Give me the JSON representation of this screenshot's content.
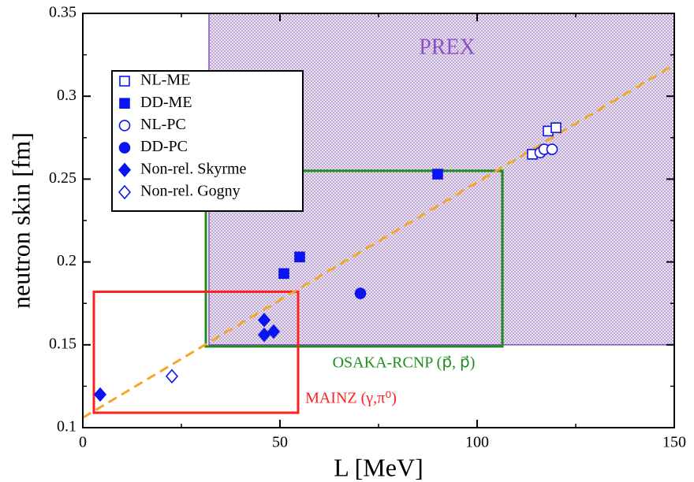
{
  "chart_data": {
    "type": "scatter",
    "xlabel": "L [MeV]",
    "ylabel": "neutron skin [fm]",
    "xlim": [
      0,
      150
    ],
    "ylim": [
      0.1,
      0.35
    ],
    "xticks": [
      0,
      50,
      100,
      150
    ],
    "yticks": [
      0.1,
      0.15,
      0.2,
      0.25,
      0.3,
      0.35
    ],
    "xminorticks": [
      25,
      75,
      125
    ],
    "yminorticks": [
      0.125,
      0.175,
      0.225,
      0.275,
      0.325
    ],
    "regions": [
      {
        "name": "PREX",
        "xlim": [
          32,
          150
        ],
        "ylim": [
          0.15,
          0.35
        ],
        "color": "#8a4fc7"
      },
      {
        "name": "OSAKA-RCNP (p⃗, p⃗)",
        "xlim": [
          31.2,
          106.4
        ],
        "ylim": [
          0.149,
          0.255
        ],
        "color": "#1e8c1e"
      },
      {
        "name": "MAINZ (γ,π⁰)",
        "xlim": [
          2.8,
          54.6
        ],
        "ylim": [
          0.109,
          0.182
        ],
        "color": "#ff1f1f"
      }
    ],
    "fit": {
      "x": [
        0,
        150
      ],
      "y": [
        0.106,
        0.319
      ],
      "color": "#f5a623"
    },
    "series": [
      {
        "name": "NL-ME",
        "color": "#0a14f0",
        "marker": "square",
        "filled": false,
        "x": [
          114,
          118,
          120
        ],
        "values": [
          0.265,
          0.279,
          0.281
        ]
      },
      {
        "name": "DD-ME",
        "color": "#0a14f0",
        "marker": "square",
        "filled": true,
        "x": [
          51,
          55,
          90
        ],
        "values": [
          0.193,
          0.203,
          0.253
        ]
      },
      {
        "name": "NL-PC",
        "color": "#0a14f0",
        "marker": "circle",
        "filled": false,
        "x": [
          116,
          117,
          119
        ],
        "values": [
          0.266,
          0.268,
          0.268
        ]
      },
      {
        "name": "DD-PC",
        "color": "#0a14f0",
        "marker": "circle",
        "filled": true,
        "x": [
          70.4
        ],
        "values": [
          0.181
        ]
      },
      {
        "name": "Non-rel. Skyrme",
        "color": "#0a14f0",
        "marker": "diamond",
        "filled": true,
        "x": [
          4.4,
          46,
          46,
          48.4
        ],
        "values": [
          0.12,
          0.165,
          0.156,
          0.158
        ]
      },
      {
        "name": "Non-rel. Gogny",
        "color": "#0a14f0",
        "marker": "diamond",
        "filled": false,
        "x": [
          22.6
        ],
        "values": [
          0.131
        ]
      }
    ]
  }
}
